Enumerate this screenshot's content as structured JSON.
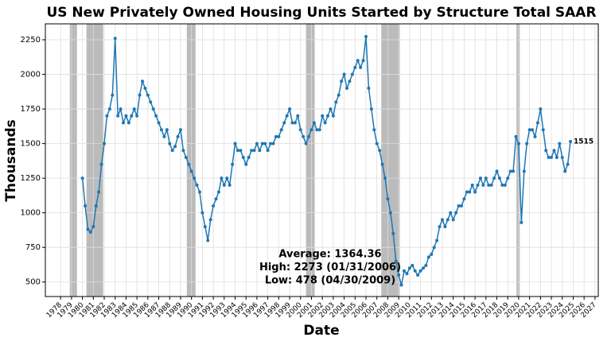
{
  "chart_data": {
    "type": "line",
    "title": "US New Privately Owned Housing Units Started by Structure Total SAAR",
    "xlabel": "Date",
    "ylabel": "Thousands",
    "x": [
      1980,
      1980.25,
      1980.5,
      1980.75,
      1981,
      1981.25,
      1981.5,
      1981.75,
      1982,
      1982.25,
      1982.5,
      1982.75,
      1983,
      1983.25,
      1983.5,
      1983.75,
      1984,
      1984.25,
      1984.5,
      1984.75,
      1985,
      1985.25,
      1985.5,
      1985.75,
      1986,
      1986.25,
      1986.5,
      1986.75,
      1987,
      1987.25,
      1987.5,
      1987.75,
      1988,
      1988.25,
      1988.5,
      1988.75,
      1989,
      1989.25,
      1989.5,
      1989.75,
      1990,
      1990.25,
      1990.5,
      1990.75,
      1991,
      1991.25,
      1991.5,
      1991.75,
      1992,
      1992.25,
      1992.5,
      1992.75,
      1993,
      1993.25,
      1993.5,
      1993.75,
      1994,
      1994.25,
      1994.5,
      1994.75,
      1995,
      1995.25,
      1995.5,
      1995.75,
      1996,
      1996.25,
      1996.5,
      1996.75,
      1997,
      1997.25,
      1997.5,
      1997.75,
      1998,
      1998.25,
      1998.5,
      1998.75,
      1999,
      1999.25,
      1999.5,
      1999.75,
      2000,
      2000.25,
      2000.5,
      2000.75,
      2001,
      2001.25,
      2001.5,
      2001.75,
      2002,
      2002.25,
      2002.5,
      2002.75,
      2003,
      2003.25,
      2003.5,
      2003.75,
      2004,
      2004.25,
      2004.5,
      2004.75,
      2005,
      2005.25,
      2005.5,
      2005.75,
      2006,
      2006.25,
      2006.5,
      2006.75,
      2007,
      2007.25,
      2007.5,
      2007.75,
      2008,
      2008.25,
      2008.5,
      2008.75,
      2009,
      2009.25,
      2009.5,
      2009.75,
      2010,
      2010.25,
      2010.5,
      2010.75,
      2011,
      2011.25,
      2011.5,
      2011.75,
      2012,
      2012.25,
      2012.5,
      2012.75,
      2013,
      2013.25,
      2013.5,
      2013.75,
      2014,
      2014.25,
      2014.5,
      2014.75,
      2015,
      2015.25,
      2015.5,
      2015.75,
      2016,
      2016.25,
      2016.5,
      2016.75,
      2017,
      2017.25,
      2017.5,
      2017.75,
      2018,
      2018.25,
      2018.5,
      2018.75,
      2019,
      2019.25,
      2019.5,
      2019.75,
      2020,
      2020.25,
      2020.5,
      2020.75,
      2021,
      2021.25,
      2021.5,
      2021.75,
      2022,
      2022.25,
      2022.5,
      2022.75,
      2023,
      2023.25,
      2023.5,
      2023.75,
      2024,
      2024.25,
      2024.5,
      2024.75
    ],
    "values": [
      1250,
      1050,
      880,
      860,
      900,
      1050,
      1150,
      1350,
      1500,
      1700,
      1750,
      1850,
      2260,
      1700,
      1750,
      1650,
      1700,
      1650,
      1700,
      1750,
      1700,
      1850,
      1950,
      1900,
      1850,
      1800,
      1750,
      1700,
      1650,
      1600,
      1550,
      1600,
      1500,
      1450,
      1480,
      1550,
      1600,
      1450,
      1400,
      1350,
      1300,
      1250,
      1200,
      1150,
      1000,
      900,
      800,
      950,
      1050,
      1100,
      1150,
      1250,
      1200,
      1250,
      1200,
      1350,
      1500,
      1450,
      1450,
      1400,
      1350,
      1400,
      1450,
      1450,
      1500,
      1450,
      1500,
      1500,
      1450,
      1500,
      1500,
      1550,
      1550,
      1600,
      1650,
      1700,
      1750,
      1650,
      1650,
      1700,
      1600,
      1550,
      1500,
      1550,
      1600,
      1650,
      1600,
      1600,
      1700,
      1650,
      1700,
      1750,
      1700,
      1800,
      1850,
      1950,
      2000,
      1900,
      1950,
      2000,
      2050,
      2100,
      2050,
      2100,
      2273,
      1900,
      1750,
      1600,
      1500,
      1450,
      1350,
      1250,
      1100,
      1000,
      850,
      650,
      550,
      478,
      580,
      560,
      600,
      620,
      580,
      550,
      580,
      600,
      620,
      680,
      700,
      750,
      800,
      900,
      950,
      900,
      950,
      1000,
      950,
      1000,
      1050,
      1050,
      1100,
      1150,
      1150,
      1200,
      1150,
      1200,
      1250,
      1200,
      1250,
      1200,
      1200,
      1250,
      1300,
      1250,
      1200,
      1200,
      1250,
      1300,
      1300,
      1550,
      1500,
      930,
      1300,
      1500,
      1600,
      1600,
      1550,
      1650,
      1750,
      1600,
      1450,
      1400,
      1400,
      1450,
      1400,
      1500,
      1400,
      1300,
      1350,
      1515
    ],
    "color": "#1f77b4",
    "recessions": [
      [
        1978.84,
        1979.5
      ],
      [
        1980.37,
        1981.9
      ],
      [
        1989.57,
        1990.37
      ],
      [
        2000.5,
        2001.3
      ],
      [
        2007.4,
        2009.1
      ],
      [
        2019.8,
        2020.1
      ]
    ],
    "annotations": [
      "Average: 1364.36",
      "High: 2273 (01/31/2006)",
      "Low: 478 (04/30/2009)"
    ],
    "xlim": [
      1976.6,
      2027.3
    ],
    "ylim": [
      395,
      2365
    ],
    "xticks": [
      1978,
      1979,
      1980,
      1981,
      1982,
      1983,
      1984,
      1985,
      1986,
      1987,
      1988,
      1989,
      1990,
      1991,
      1992,
      1993,
      1994,
      1995,
      1996,
      1997,
      1998,
      1999,
      2000,
      2001,
      2002,
      2003,
      2004,
      2005,
      2006,
      2007,
      2008,
      2009,
      2010,
      2011,
      2012,
      2013,
      2014,
      2015,
      2016,
      2017,
      2018,
      2019,
      2020,
      2021,
      2022,
      2023,
      2024,
      2025,
      2026,
      2027
    ],
    "yticks": [
      500,
      750,
      1000,
      1250,
      1500,
      1750,
      2000,
      2250
    ],
    "grid": true
  }
}
